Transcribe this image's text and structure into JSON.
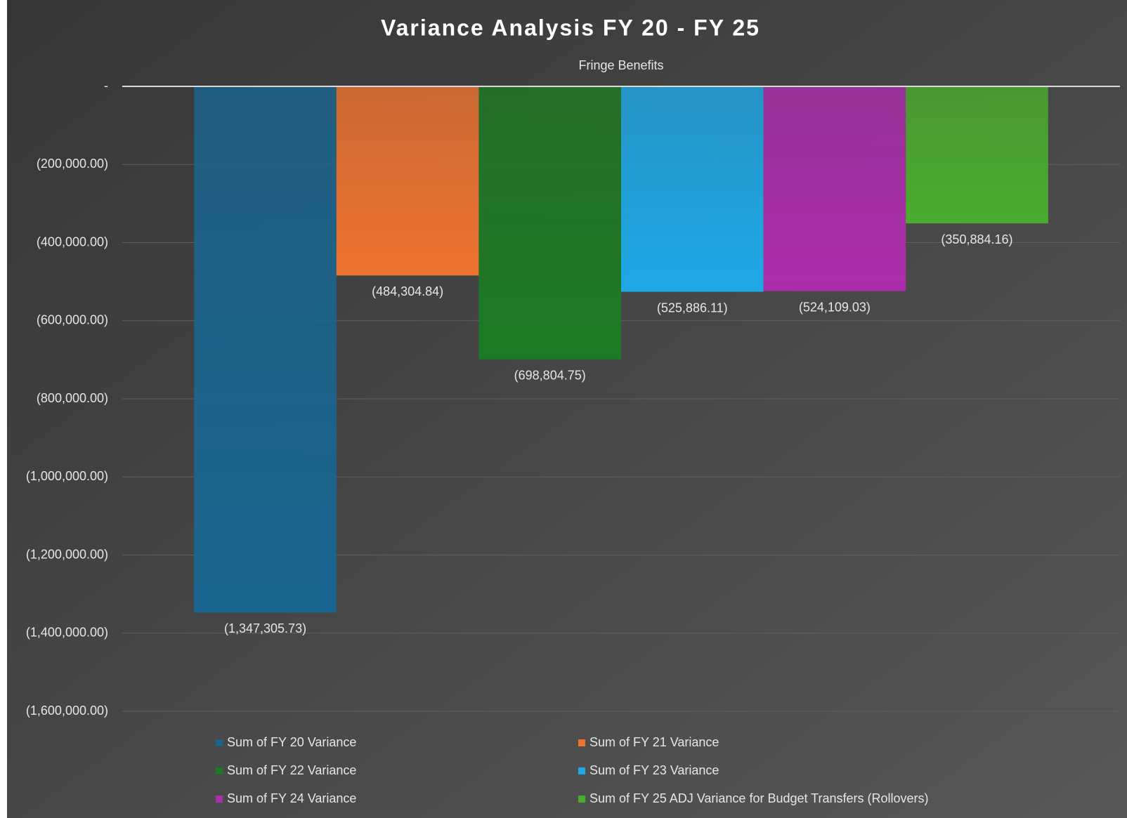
{
  "chart_data": {
    "type": "bar",
    "title": "Variance Analysis FY 20 - FY 25",
    "categories": [
      "Fringe Benefits"
    ],
    "series": [
      {
        "name": "Sum of FY 20 Variance",
        "color": "#1a6590",
        "values": [
          -1347305.73
        ],
        "value_labels": [
          "(1,347,305.73)"
        ]
      },
      {
        "name": "Sum of FY 21 Variance",
        "color": "#ee7330",
        "values": [
          -484304.84
        ],
        "value_labels": [
          "(484,304.84)"
        ]
      },
      {
        "name": "Sum of FY 22 Variance",
        "color": "#1d7a24",
        "values": [
          -698804.75
        ],
        "value_labels": [
          "(698,804.75)"
        ]
      },
      {
        "name": "Sum of FY 23 Variance",
        "color": "#1ea8e6",
        "values": [
          -525886.11
        ],
        "value_labels": [
          "(525,886.11)"
        ]
      },
      {
        "name": "Sum of FY 24 Variance",
        "color": "#ac2dac",
        "values": [
          -524109.03
        ],
        "value_labels": [
          "(524,109.03)"
        ]
      },
      {
        "name": "Sum of FY 25 ADJ Variance for Budget Transfers (Rollovers)",
        "color": "#4aac2e",
        "values": [
          -350884.16
        ],
        "value_labels": [
          "(350,884.16)"
        ]
      }
    ],
    "ylim": [
      -1600000,
      0
    ],
    "yticks": [
      {
        "value": 0,
        "label": "-"
      },
      {
        "value": -200000,
        "label": "(200,000.00)"
      },
      {
        "value": -400000,
        "label": "(400,000.00)"
      },
      {
        "value": -600000,
        "label": "(600,000.00)"
      },
      {
        "value": -800000,
        "label": "(800,000.00)"
      },
      {
        "value": -1000000,
        "label": "(1,000,000.00)"
      },
      {
        "value": -1200000,
        "label": "(1,200,000.00)"
      },
      {
        "value": -1400000,
        "label": "(1,400,000.00)"
      },
      {
        "value": -1600000,
        "label": "(1,600,000.00)"
      }
    ],
    "grid": true,
    "legend": "bottom"
  }
}
